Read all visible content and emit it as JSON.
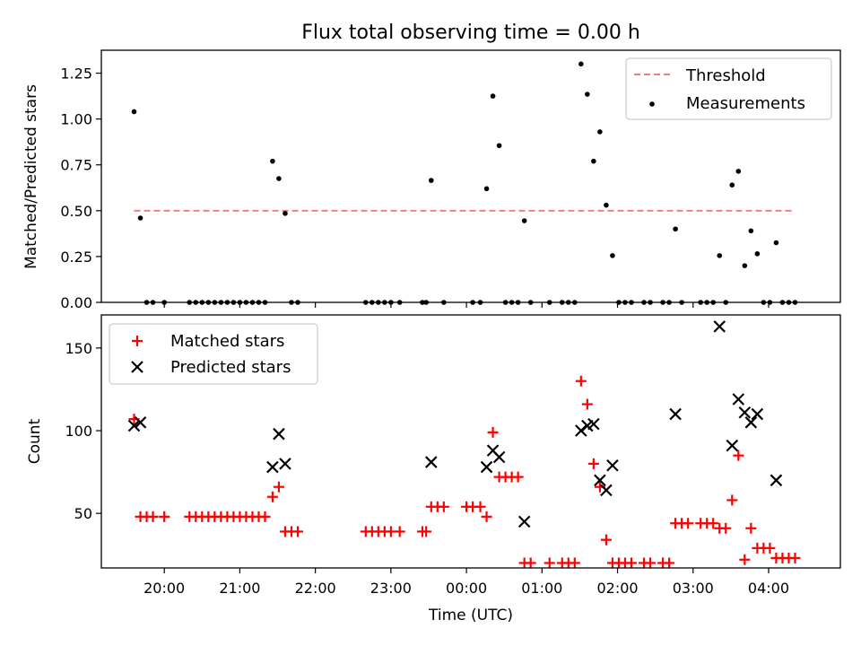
{
  "figure": {
    "title": "Flux total observing time = 0.00 h"
  },
  "chart_data": [
    {
      "type": "scatter",
      "panel": "ratio",
      "ylabel": "Matched/Predicted stars",
      "xlabel": "",
      "ylim": [
        0,
        1.375
      ],
      "xlim": [
        "19:10",
        "04:57"
      ],
      "yticks": [
        "0.00",
        "0.25",
        "0.50",
        "0.75",
        "1.00",
        "1.25"
      ],
      "grid": false,
      "legend_position": "top-right",
      "threshold": {
        "name": "Threshold",
        "value": 0.5,
        "x_start": "19:36",
        "x_end": "04:21",
        "color": "#f08080"
      },
      "series": [
        {
          "name": "Measurements",
          "color": "#000000",
          "points": [
            [
              "19:36",
              1.04
            ],
            [
              "19:41",
              0.46
            ],
            [
              "19:46",
              0.0
            ],
            [
              "19:51",
              0.0
            ],
            [
              "20:00",
              0.0
            ],
            [
              "20:20",
              0.0
            ],
            [
              "20:25",
              0.0
            ],
            [
              "20:30",
              0.0
            ],
            [
              "20:35",
              0.0
            ],
            [
              "20:40",
              0.0
            ],
            [
              "20:45",
              0.0
            ],
            [
              "20:50",
              0.0
            ],
            [
              "20:55",
              0.0
            ],
            [
              "21:00",
              0.0
            ],
            [
              "21:05",
              0.0
            ],
            [
              "21:10",
              0.0
            ],
            [
              "21:15",
              0.0
            ],
            [
              "21:20",
              0.0
            ],
            [
              "21:26",
              0.77
            ],
            [
              "21:31",
              0.675
            ],
            [
              "21:36",
              0.485
            ],
            [
              "21:41",
              0.0
            ],
            [
              "21:46",
              0.0
            ],
            [
              "22:40",
              0.0
            ],
            [
              "22:45",
              0.0
            ],
            [
              "22:50",
              0.0
            ],
            [
              "22:55",
              0.0
            ],
            [
              "23:00",
              0.0
            ],
            [
              "23:07",
              0.0
            ],
            [
              "23:25",
              0.0
            ],
            [
              "23:28",
              0.0
            ],
            [
              "23:32",
              0.665
            ],
            [
              "23:42",
              0.0
            ],
            [
              "00:05",
              0.0
            ],
            [
              "00:11",
              0.0
            ],
            [
              "00:16",
              0.62
            ],
            [
              "00:21",
              1.125
            ],
            [
              "00:26",
              0.855
            ],
            [
              "00:31",
              0.0
            ],
            [
              "00:36",
              0.0
            ],
            [
              "00:41",
              0.0
            ],
            [
              "00:46",
              0.445
            ],
            [
              "00:51",
              0.0
            ],
            [
              "01:06",
              0.0
            ],
            [
              "01:16",
              0.0
            ],
            [
              "01:21",
              0.0
            ],
            [
              "01:26",
              0.0
            ],
            [
              "01:31",
              1.3
            ],
            [
              "01:36",
              1.135
            ],
            [
              "01:41",
              0.77
            ],
            [
              "01:46",
              0.93
            ],
            [
              "01:51",
              0.53
            ],
            [
              "01:56",
              0.255
            ],
            [
              "02:01",
              0.0
            ],
            [
              "02:06",
              0.0
            ],
            [
              "02:11",
              0.0
            ],
            [
              "02:21",
              0.0
            ],
            [
              "02:26",
              0.0
            ],
            [
              "02:36",
              0.0
            ],
            [
              "02:41",
              0.0
            ],
            [
              "02:46",
              0.4
            ],
            [
              "02:51",
              0.0
            ],
            [
              "03:06",
              0.0
            ],
            [
              "03:11",
              0.0
            ],
            [
              "03:16",
              0.0
            ],
            [
              "03:21",
              0.255
            ],
            [
              "03:26",
              0.0
            ],
            [
              "03:31",
              0.64
            ],
            [
              "03:36",
              0.715
            ],
            [
              "03:41",
              0.2
            ],
            [
              "03:46",
              0.39
            ],
            [
              "03:51",
              0.265
            ],
            [
              "03:56",
              0.0
            ],
            [
              "04:01",
              0.0
            ],
            [
              "04:06",
              0.325
            ],
            [
              "04:11",
              0.0
            ],
            [
              "04:16",
              0.0
            ],
            [
              "04:21",
              0.0
            ]
          ]
        }
      ]
    },
    {
      "type": "scatter",
      "panel": "counts",
      "ylabel": "Count",
      "xlabel": "Time (UTC)",
      "ylim": [
        17,
        170
      ],
      "xlim": [
        "19:10",
        "04:57"
      ],
      "xticks": [
        "20:00",
        "21:00",
        "22:00",
        "23:00",
        "00:00",
        "01:00",
        "02:00",
        "03:00",
        "04:00"
      ],
      "yticks": [
        "50",
        "100",
        "150"
      ],
      "grid": false,
      "legend_position": "top-left",
      "series": [
        {
          "name": "Matched stars",
          "marker": "plus",
          "color": "#ff0000",
          "points": [
            [
              "19:36",
              107
            ],
            [
              "19:41",
              48
            ],
            [
              "19:46",
              48
            ],
            [
              "19:51",
              48
            ],
            [
              "20:00",
              48
            ],
            [
              "20:20",
              48
            ],
            [
              "20:25",
              48
            ],
            [
              "20:30",
              48
            ],
            [
              "20:35",
              48
            ],
            [
              "20:40",
              48
            ],
            [
              "20:45",
              48
            ],
            [
              "20:50",
              48
            ],
            [
              "20:55",
              48
            ],
            [
              "21:00",
              48
            ],
            [
              "21:05",
              48
            ],
            [
              "21:10",
              48
            ],
            [
              "21:15",
              48
            ],
            [
              "21:20",
              48
            ],
            [
              "21:26",
              60
            ],
            [
              "21:31",
              66
            ],
            [
              "21:36",
              39
            ],
            [
              "21:41",
              39
            ],
            [
              "21:46",
              39
            ],
            [
              "22:40",
              39
            ],
            [
              "22:45",
              39
            ],
            [
              "22:50",
              39
            ],
            [
              "22:55",
              39
            ],
            [
              "23:00",
              39
            ],
            [
              "23:07",
              39
            ],
            [
              "23:25",
              39
            ],
            [
              "23:28",
              39
            ],
            [
              "23:32",
              54
            ],
            [
              "23:37",
              54
            ],
            [
              "23:42",
              54
            ],
            [
              "00:00",
              54
            ],
            [
              "00:05",
              54
            ],
            [
              "00:11",
              54
            ],
            [
              "00:16",
              48
            ],
            [
              "00:21",
              99
            ],
            [
              "00:26",
              72
            ],
            [
              "00:31",
              72
            ],
            [
              "00:36",
              72
            ],
            [
              "00:41",
              72
            ],
            [
              "00:46",
              20
            ],
            [
              "00:51",
              20
            ],
            [
              "01:06",
              20
            ],
            [
              "01:16",
              20
            ],
            [
              "01:21",
              20
            ],
            [
              "01:26",
              20
            ],
            [
              "01:31",
              130
            ],
            [
              "01:36",
              116
            ],
            [
              "01:41",
              80
            ],
            [
              "01:46",
              66
            ],
            [
              "01:51",
              34
            ],
            [
              "01:56",
              20
            ],
            [
              "02:01",
              20
            ],
            [
              "02:06",
              20
            ],
            [
              "02:11",
              20
            ],
            [
              "02:21",
              20
            ],
            [
              "02:26",
              20
            ],
            [
              "02:36",
              20
            ],
            [
              "02:41",
              20
            ],
            [
              "02:46",
              44
            ],
            [
              "02:51",
              44
            ],
            [
              "02:56",
              44
            ],
            [
              "03:06",
              44
            ],
            [
              "03:11",
              44
            ],
            [
              "03:16",
              44
            ],
            [
              "03:21",
              41
            ],
            [
              "03:26",
              41
            ],
            [
              "03:31",
              58
            ],
            [
              "03:36",
              85
            ],
            [
              "03:41",
              22
            ],
            [
              "03:46",
              41
            ],
            [
              "03:51",
              29
            ],
            [
              "03:56",
              29
            ],
            [
              "04:01",
              29
            ],
            [
              "04:06",
              23
            ],
            [
              "04:11",
              23
            ],
            [
              "04:16",
              23
            ],
            [
              "04:21",
              23
            ]
          ]
        },
        {
          "name": "Predicted stars",
          "marker": "x",
          "color": "#000000",
          "points": [
            [
              "19:36",
              103
            ],
            [
              "19:41",
              105
            ],
            [
              "21:26",
              78
            ],
            [
              "21:31",
              98
            ],
            [
              "21:36",
              80
            ],
            [
              "23:32",
              81
            ],
            [
              "00:16",
              78
            ],
            [
              "00:21",
              88
            ],
            [
              "00:26",
              84
            ],
            [
              "00:46",
              45
            ],
            [
              "01:31",
              100
            ],
            [
              "01:36",
              103
            ],
            [
              "01:41",
              104
            ],
            [
              "01:46",
              70
            ],
            [
              "01:51",
              64
            ],
            [
              "01:56",
              79
            ],
            [
              "02:46",
              110
            ],
            [
              "03:21",
              163
            ],
            [
              "03:31",
              91
            ],
            [
              "03:36",
              119
            ],
            [
              "03:41",
              111
            ],
            [
              "03:46",
              105
            ],
            [
              "03:51",
              110
            ],
            [
              "04:06",
              70
            ]
          ]
        }
      ]
    }
  ]
}
